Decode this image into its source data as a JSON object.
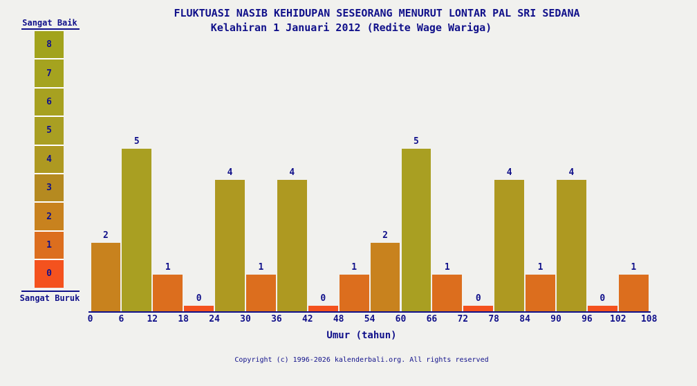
{
  "title": "FLUKTUASI NASIB KEHIDUPAN SESEORANG MENURUT LONTAR PAL SRI SEDANA",
  "subtitle": "Kelahiran 1 Januari 2012 (Redite Wage Wariga)",
  "footer": "Copyright (c) 1996-2026 kalenderbali.org. All rights reserved",
  "colors": {
    "background": "#f1f1ee",
    "text": "#10108a",
    "axis": "#10108a",
    "cell_separator": "#ffffff"
  },
  "legend": {
    "top_label": "Sangat Baik",
    "bottom_label": "Sangat Buruk",
    "levels": [
      {
        "value": 8,
        "color": "#a2a31c"
      },
      {
        "value": 7,
        "color": "#a5a31f"
      },
      {
        "value": 6,
        "color": "#a7a120"
      },
      {
        "value": 5,
        "color": "#a99f22"
      },
      {
        "value": 4,
        "color": "#ae9921"
      },
      {
        "value": 3,
        "color": "#b58a20"
      },
      {
        "value": 2,
        "color": "#c8821e"
      },
      {
        "value": 1,
        "color": "#dc6e1e"
      },
      {
        "value": 0,
        "color": "#f4521e"
      }
    ]
  },
  "chart_data": {
    "type": "bar",
    "title": "FLUKTUASI NASIB KEHIDUPAN SESEORANG MENURUT LONTAR PAL SRI SEDANA",
    "subtitle": "Kelahiran 1 Januari 2012 (Redite Wage Wariga)",
    "xlabel": "Umur (tahun)",
    "ylabel": "",
    "x_ticks": [
      0,
      6,
      12,
      18,
      24,
      30,
      36,
      42,
      48,
      54,
      60,
      66,
      72,
      78,
      84,
      90,
      96,
      102,
      108
    ],
    "bin_width_years": 6,
    "bar_start_ages": [
      0,
      6,
      12,
      18,
      24,
      30,
      36,
      42,
      48,
      54,
      60,
      66,
      72,
      78,
      84,
      90,
      96,
      102
    ],
    "values": [
      2,
      5,
      1,
      0,
      4,
      1,
      4,
      0,
      1,
      2,
      5,
      1,
      0,
      4,
      1,
      4,
      0,
      1
    ],
    "ylim": [
      0,
      8
    ],
    "value_scale_meaning": {
      "8": "Sangat Baik",
      "0": "Sangat Buruk"
    },
    "grid": false,
    "legend_position": "left"
  }
}
